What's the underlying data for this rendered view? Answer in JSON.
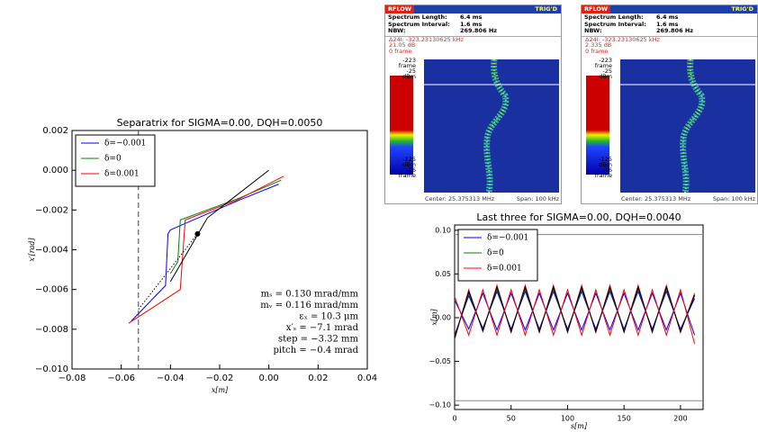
{
  "chart_data": [
    {
      "type": "line",
      "title": "Separatrix for SIGMA=0.00, DQH=0.0050",
      "xlabel": "x[m]",
      "ylabel": "x′[rad]",
      "xlim": [
        -0.08,
        0.04
      ],
      "ylim": [
        -0.01,
        0.002
      ],
      "xticks": [
        {
          "value": -0.08,
          "label": "−0.08"
        },
        {
          "value": -0.06,
          "label": "−0.06"
        },
        {
          "value": -0.04,
          "label": "−0.04"
        },
        {
          "value": -0.02,
          "label": "−0.02"
        },
        {
          "value": 0,
          "label": "0.00"
        },
        {
          "value": 0.02,
          "label": "0.02"
        },
        {
          "value": 0.04,
          "label": "0.04"
        }
      ],
      "yticks": [
        {
          "value": 0.002,
          "label": "0.002"
        },
        {
          "value": 0,
          "label": "0.000"
        },
        {
          "value": -0.002,
          "label": "−0.002"
        },
        {
          "value": -0.004,
          "label": "−0.004"
        },
        {
          "value": -0.006,
          "label": "−0.006"
        },
        {
          "value": -0.008,
          "label": "−0.008"
        },
        {
          "value": -0.01,
          "label": "−0.010"
        }
      ],
      "series": [
        {
          "name": "δ=−0.001",
          "color": "#0000ff",
          "x": [
            -0.056,
            -0.042,
            -0.041,
            -0.04,
            -0.012,
            0.004
          ],
          "values": [
            -0.0076,
            -0.0058,
            -0.0032,
            -0.003,
            -0.0015,
            -0.0007
          ]
        },
        {
          "name": "δ=0",
          "color": "#008000",
          "x": [
            -0.04,
            -0.037,
            -0.036,
            -0.012,
            0.005
          ],
          "values": [
            -0.0052,
            -0.0046,
            -0.0025,
            -0.0014,
            -0.0005
          ]
        },
        {
          "name": "δ=0.001",
          "color": "#ff0000",
          "x": [
            -0.057,
            -0.036,
            -0.034,
            -0.013,
            0.006
          ],
          "values": [
            -0.0077,
            -0.006,
            -0.0025,
            -0.0015,
            -0.0003
          ]
        },
        {
          "color": "#000000",
          "x": [
            -0.04,
            -0.025,
            0.0
          ],
          "values": [
            -0.0056,
            -0.0024,
            0.0
          ]
        },
        {
          "color": "#000000",
          "style": "dotted",
          "x": [
            -0.053,
            -0.029
          ],
          "values": [
            -0.007,
            -0.0032
          ]
        }
      ],
      "vline": -0.053,
      "marker": [
        -0.029,
        -0.0032
      ],
      "annotations": [
        "mₛ = 0.130 mrad/mm",
        "mᵥ = 0.116 mrad/mm",
        "εₓ = 10.3 μm",
        "x′ₛ = −7.1 mrad",
        "step = −3.32 mm",
        "pitch = −0.4 mrad"
      ]
    },
    {
      "type": "line",
      "title": "Last three for SIGMA=0.00, DQH=0.0040",
      "xlabel": "s[m]",
      "ylabel": "x[m]",
      "xlim": [
        0,
        220
      ],
      "ylim": [
        -0.105,
        0.106
      ],
      "xticks": [
        0,
        50,
        100,
        150,
        200
      ],
      "yticks": [
        {
          "value": 0.1,
          "label": "0.10"
        },
        {
          "value": 0.05,
          "label": "0.05"
        },
        {
          "value": 0,
          "label": "0.00"
        },
        {
          "value": -0.05,
          "label": "−0.05"
        },
        {
          "value": -0.1,
          "label": "−0.10"
        }
      ],
      "x": [
        0,
        12.5,
        25,
        37.5,
        50,
        62.5,
        75,
        87.5,
        100,
        112.5,
        125,
        137.5,
        150,
        162.5,
        175,
        187.5,
        200,
        212.5
      ],
      "series": [
        {
          "name": "δ=−0.001",
          "color": "#0000ff",
          "values": [
            -0.02,
            0.025,
            -0.012,
            0.03,
            -0.013,
            0.03,
            -0.013,
            0.03,
            -0.013,
            0.03,
            -0.013,
            0.03,
            -0.013,
            0.03,
            -0.013,
            0.03,
            -0.013,
            0.022
          ]
        },
        {
          "name": "δ=0",
          "color": "#008000",
          "values": [
            -0.022,
            0.028,
            -0.014,
            0.033,
            -0.015,
            0.033,
            -0.015,
            0.033,
            -0.015,
            0.033,
            -0.015,
            0.033,
            -0.015,
            0.033,
            -0.015,
            0.033,
            -0.015,
            0.025
          ]
        },
        {
          "name": "δ=0.001",
          "color": "#ff0000",
          "values": [
            -0.025,
            0.032,
            -0.016,
            0.037,
            -0.017,
            0.037,
            -0.017,
            0.037,
            -0.017,
            0.037,
            -0.017,
            0.037,
            -0.017,
            0.037,
            -0.017,
            0.037,
            -0.017,
            0.028
          ]
        },
        {
          "color": "#000000",
          "values": [
            -0.023,
            0.03,
            -0.015,
            0.035,
            -0.016,
            0.035,
            -0.016,
            0.035,
            -0.016,
            0.035,
            -0.016,
            0.035,
            -0.016,
            0.035,
            -0.016,
            0.035,
            -0.016,
            0.026
          ]
        },
        {
          "color": "#0000ff",
          "values": [
            0.02,
            -0.013,
            0.028,
            -0.014,
            0.028,
            -0.014,
            0.028,
            -0.014,
            0.028,
            -0.014,
            0.028,
            -0.014,
            0.028,
            -0.014,
            0.028,
            -0.014,
            0.028,
            -0.02
          ]
        },
        {
          "color": "#ff0000",
          "values": [
            0.024,
            -0.02,
            0.032,
            -0.02,
            0.032,
            -0.02,
            0.032,
            -0.02,
            0.032,
            -0.02,
            0.032,
            -0.02,
            0.032,
            -0.02,
            0.032,
            -0.02,
            0.032,
            -0.03
          ]
        },
        {
          "color": "#888888",
          "x": [
            0,
            220
          ],
          "values": [
            0.095,
            0.095
          ]
        },
        {
          "color": "#888888",
          "x": [
            0,
            220
          ],
          "values": [
            -0.095,
            -0.095
          ]
        }
      ]
    }
  ],
  "screens": [
    {
      "brand": "RFLOW",
      "status": "TRIG'D",
      "info": [
        [
          "Spectrum Length:",
          "6.4 ms"
        ],
        [
          "Spectrum Interval:",
          "1.6 ms"
        ],
        [
          "NBW:",
          "269.806 Hz"
        ]
      ],
      "markers": [
        "Δ24I: -323.23130625 kHz",
        "21.05 dB",
        "0 frame"
      ],
      "scale": [
        "-223",
        "frame",
        "-25",
        "dBm",
        "-125",
        "dBm",
        "-16",
        "frame"
      ],
      "center": "Center: 25.375313 MHz",
      "span": "Span: 100 kHz"
    },
    {
      "brand": "RFLOW",
      "status": "TRIG'D",
      "info": [
        [
          "Spectrum Length:",
          "6.4 ms"
        ],
        [
          "Spectrum Interval:",
          "1.6 ms"
        ],
        [
          "NBW:",
          "269.806 Hz"
        ]
      ],
      "markers": [
        "Δ24I: -323.23130625 kHz",
        "2.335 dB",
        "0 frame"
      ],
      "scale": [
        "-223",
        "frame",
        "-25",
        "dBm",
        "-125",
        "dBm",
        "-16",
        "frame"
      ],
      "center": "Center: 25.375313 MHz",
      "span": "Span: 100 kHz"
    }
  ]
}
